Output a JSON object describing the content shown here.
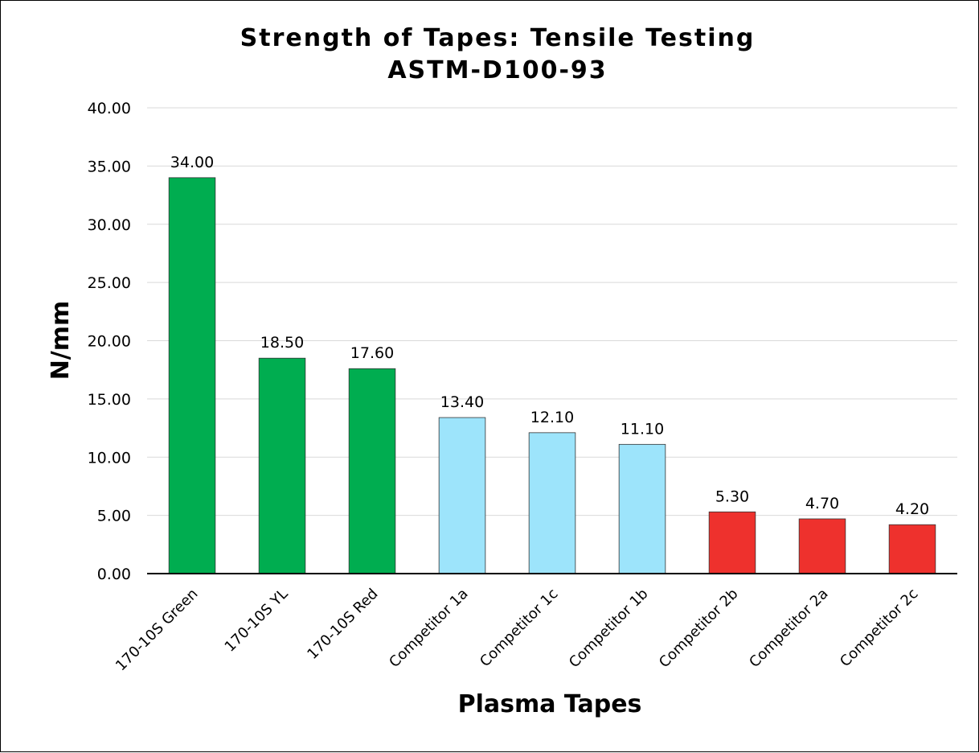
{
  "chart_data": {
    "type": "bar",
    "title": "Strength of Tapes: Tensile Testing",
    "subtitle": "ASTM-D100-93",
    "xlabel": "Plasma Tapes",
    "ylabel": "N/mm",
    "ylim": [
      0,
      40
    ],
    "ytick_step": 5,
    "ytick_labels": [
      "0.00",
      "5.00",
      "10.00",
      "15.00",
      "20.00",
      "25.00",
      "30.00",
      "35.00",
      "40.00"
    ],
    "grid": true,
    "legend": "none",
    "categories": [
      "170-10S Green",
      "170-10S YL",
      "170-10S Red",
      "Competitor 1a",
      "Competitor 1c",
      "Competitor 1b",
      "Competitor 2b",
      "Competitor 2a",
      "Competitor 2c"
    ],
    "values": [
      34.0,
      18.5,
      17.6,
      13.4,
      12.1,
      11.1,
      5.3,
      4.7,
      4.2
    ],
    "data_labels": [
      "34.00",
      "18.50",
      "17.60",
      "13.40",
      "12.10",
      "11.10",
      "5.30",
      "4.70",
      "4.20"
    ],
    "bar_colors": [
      "#00AD50",
      "#00AD50",
      "#00AD50",
      "#9DE4FB",
      "#9DE4FB",
      "#9DE4FB",
      "#EE312D",
      "#EE312D",
      "#EE312D"
    ]
  }
}
